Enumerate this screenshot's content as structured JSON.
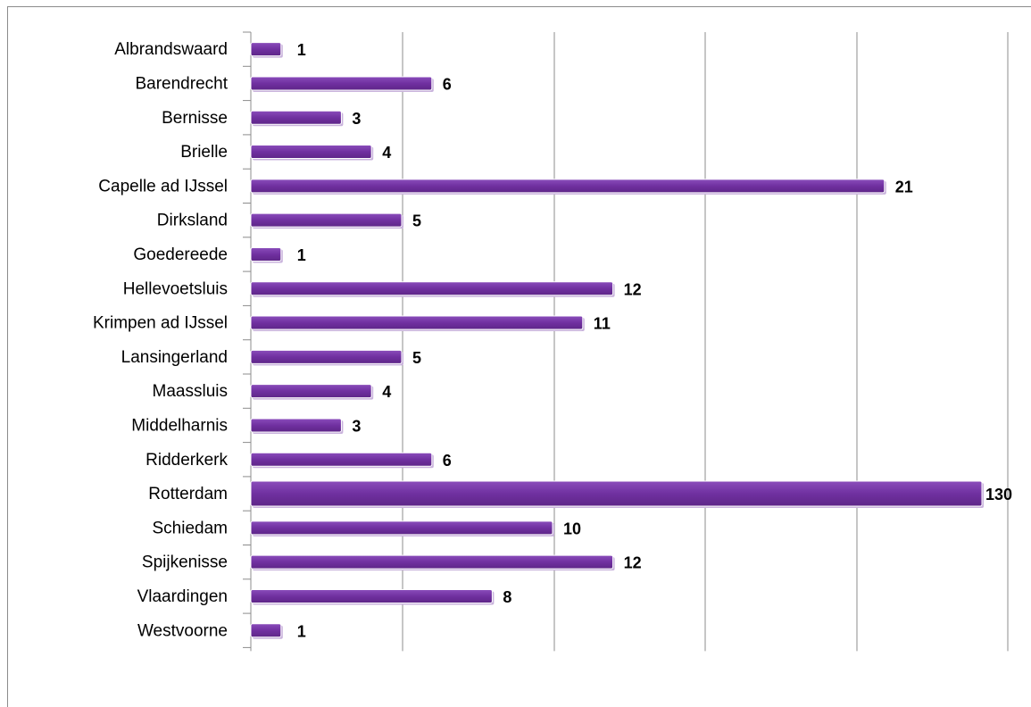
{
  "chart_data": {
    "type": "bar",
    "orientation": "horizontal",
    "categories": [
      "Albrandswaard",
      "Barendrecht",
      "Bernisse",
      "Brielle",
      "Capelle ad IJssel",
      "Dirksland",
      "Goedereede",
      "Hellevoetsluis",
      "Krimpen ad IJssel",
      "Lansingerland",
      "Maassluis",
      "Middelharnis",
      "Ridderkerk",
      "Rotterdam",
      "Schiedam",
      "Spijkenisse",
      "Vlaardingen",
      "Westvoorne"
    ],
    "values": [
      1,
      6,
      3,
      4,
      21,
      5,
      1,
      12,
      11,
      5,
      4,
      3,
      6,
      130,
      10,
      12,
      8,
      1
    ],
    "data_labels": [
      "1",
      "6",
      "3",
      "4",
      "21",
      "5",
      "1",
      "12",
      "11",
      "5",
      "4",
      "3",
      "6",
      "130",
      "10",
      "12",
      "8",
      "1"
    ],
    "bar_color": "#7030a0",
    "axis_break": true,
    "grid": "vertical",
    "title": "",
    "xlabel": "",
    "ylabel": ""
  }
}
